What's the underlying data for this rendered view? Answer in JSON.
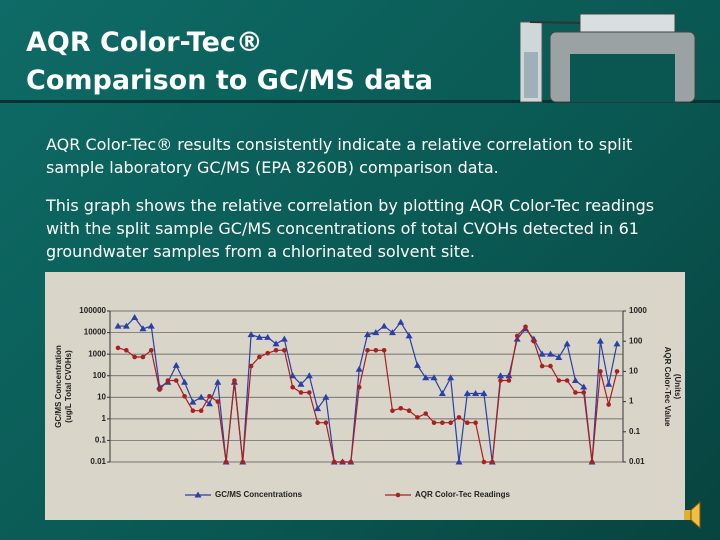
{
  "slide": {
    "title_lines": [
      "AQR Color-Tec®",
      "Comparison to GC/MS data"
    ],
    "paragraphs": [
      "AQR Color-Tec® results consistently indicate a relative correlation to split sample laboratory GC/MS (EPA 8260B) comparison data.",
      "This graph shows the relative correlation by plotting AQR Color-Tec readings with the split sample GC/MS concentrations of total CVOHs detected in 61 groundwater samples from a chlorinated solvent site."
    ]
  },
  "chart_data": {
    "type": "line",
    "categories": [
      null,
      null,
      null,
      null,
      null,
      null,
      null,
      null,
      null,
      null,
      null,
      null,
      null,
      null,
      null,
      null,
      null,
      null,
      null,
      null,
      null,
      null,
      null,
      null,
      null,
      null,
      null,
      null,
      null,
      null,
      null,
      null,
      null,
      null,
      null,
      null,
      null,
      null,
      null,
      null,
      null,
      null,
      null,
      null,
      null,
      null,
      null,
      null,
      null,
      null,
      null,
      null,
      null,
      null,
      null,
      null,
      null,
      null,
      null,
      null,
      null
    ],
    "ylabel": [
      "GC/MS Concentration",
      "(ug/L Total CVOHs)"
    ],
    "y2label": [
      "AQR Color-Tec Value",
      "(Units)"
    ],
    "yscale": "log",
    "ylim": [
      0.01,
      100000
    ],
    "yticks": [
      0.01,
      0.1,
      1,
      10,
      100,
      1000,
      10000,
      100000
    ],
    "y2scale": "log",
    "y2lim": [
      0.01,
      1000
    ],
    "y2ticks": [
      0.01,
      0.1,
      1,
      10,
      100,
      1000
    ],
    "grid": true,
    "legend": "bottom",
    "series": [
      {
        "name": "GC/MS Concentrations",
        "color": "#2b3fa8",
        "marker": "triangle",
        "values": [
          20000,
          20000,
          50000,
          15000,
          20000,
          30,
          50,
          300,
          50,
          6,
          10,
          5,
          50,
          0.01,
          50,
          0.01,
          8000,
          6000,
          6000,
          3000,
          5000,
          100,
          40,
          100,
          3,
          10,
          0.01,
          0.01,
          0.01,
          200,
          8000,
          10000,
          20000,
          10000,
          30000,
          7000,
          300,
          80,
          80,
          15,
          80,
          0.01,
          15,
          15,
          15,
          0.01,
          100,
          100,
          5000,
          15000,
          5000,
          1000,
          1000,
          700,
          3000,
          60,
          30,
          0.01,
          4000,
          40,
          3000
        ]
      },
      {
        "name": "AQR Color-Tec Readings",
        "color": "#a82020",
        "marker": "circle",
        "axis": "y2",
        "values": [
          60,
          50,
          30,
          30,
          50,
          2.5,
          5,
          5,
          1.5,
          0.5,
          0.5,
          1.5,
          1,
          0.01,
          5,
          0.01,
          15,
          30,
          40,
          50,
          50,
          3,
          2,
          2,
          0.2,
          0.2,
          0.01,
          0.01,
          0.01,
          3,
          50,
          50,
          50,
          0.5,
          0.6,
          0.5,
          0.3,
          0.4,
          0.2,
          0.2,
          0.2,
          0.3,
          0.2,
          0.2,
          0.01,
          0.01,
          5,
          5,
          150,
          300,
          100,
          15,
          15,
          5,
          5,
          2,
          2,
          0.01,
          10,
          0.8,
          10
        ]
      }
    ]
  }
}
